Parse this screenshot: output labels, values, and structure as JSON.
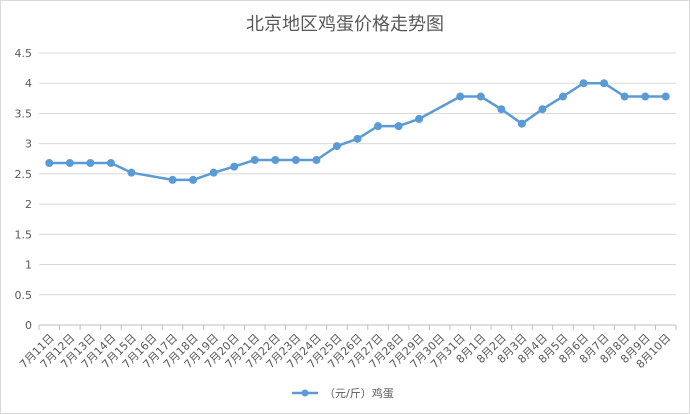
{
  "chart_data": {
    "type": "line",
    "title": "北京地区鸡蛋价格走势图",
    "xlabel": "",
    "ylabel": "",
    "ylim": [
      0,
      4.5
    ],
    "yticks": [
      "0",
      "0.5",
      "1",
      "1.5",
      "2",
      "2.5",
      "3",
      "3.5",
      "4",
      "4.5"
    ],
    "grid": true,
    "legend_position": "bottom",
    "categories": [
      "7月11日",
      "7月12日",
      "7月13日",
      "7月14日",
      "7月15日",
      "7月16日",
      "7月17日",
      "7月18日",
      "7月19日",
      "7月20日",
      "7月21日",
      "7月22日",
      "7月23日",
      "7月24日",
      "7月25日",
      "7月26日",
      "7月27日",
      "7月28日",
      "7月29日",
      "7月30日",
      "7月31日",
      "8月1日",
      "8月2日",
      "8月3日",
      "8月4日",
      "8月5日",
      "8月6日",
      "8月7日",
      "8月8日",
      "8月9日",
      "8月10日"
    ],
    "series": [
      {
        "name": "（元/斤）鸡蛋",
        "color": "#5b9bd5",
        "points": [
          {
            "x": "7月11日",
            "y": 2.68
          },
          {
            "x": "7月12日",
            "y": 2.68
          },
          {
            "x": "7月13日",
            "y": 2.68
          },
          {
            "x": "7月14日",
            "y": 2.68
          },
          {
            "x": "7月15日",
            "y": 2.52
          },
          {
            "x": "7月17日",
            "y": 2.4
          },
          {
            "x": "7月18日",
            "y": 2.4
          },
          {
            "x": "7月19日",
            "y": 2.52
          },
          {
            "x": "7月20日",
            "y": 2.62
          },
          {
            "x": "7月21日",
            "y": 2.73
          },
          {
            "x": "7月22日",
            "y": 2.73
          },
          {
            "x": "7月23日",
            "y": 2.73
          },
          {
            "x": "7月24日",
            "y": 2.73
          },
          {
            "x": "7月25日",
            "y": 2.96
          },
          {
            "x": "7月26日",
            "y": 3.08
          },
          {
            "x": "7月27日",
            "y": 3.29
          },
          {
            "x": "7月28日",
            "y": 3.29
          },
          {
            "x": "7月29日",
            "y": 3.41
          },
          {
            "x": "7月31日",
            "y": 3.78
          },
          {
            "x": "8月1日",
            "y": 3.78
          },
          {
            "x": "8月2日",
            "y": 3.57
          },
          {
            "x": "8月3日",
            "y": 3.33
          },
          {
            "x": "8月4日",
            "y": 3.57
          },
          {
            "x": "8月5日",
            "y": 3.78
          },
          {
            "x": "8月6日",
            "y": 4.0
          },
          {
            "x": "8月7日",
            "y": 4.0
          },
          {
            "x": "8月8日",
            "y": 3.78
          },
          {
            "x": "8月9日",
            "y": 3.78
          },
          {
            "x": "8月10日",
            "y": 3.78
          }
        ]
      }
    ]
  }
}
